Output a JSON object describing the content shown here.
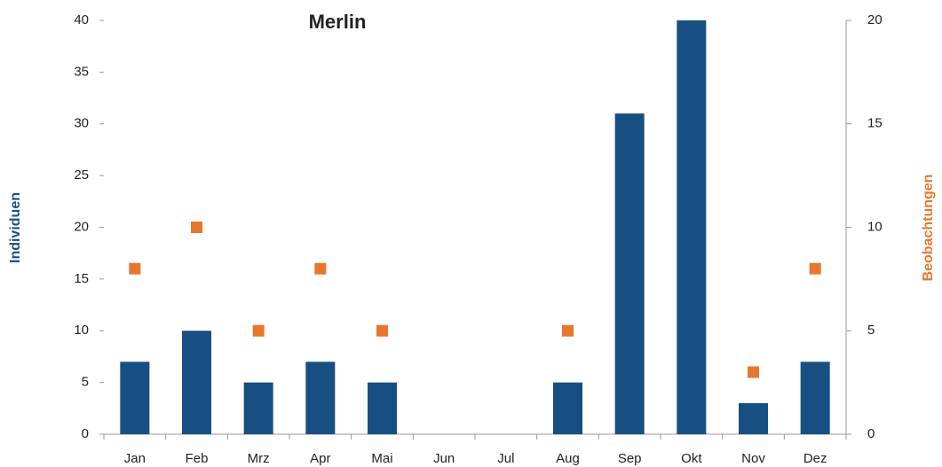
{
  "chart_data": {
    "type": "bar",
    "title": "Merlin",
    "categories": [
      "Jan",
      "Feb",
      "Mrz",
      "Apr",
      "Mai",
      "Jun",
      "Jul",
      "Aug",
      "Sep",
      "Okt",
      "Nov",
      "Dez"
    ],
    "y_label": "Individuen",
    "y2_label": "Beobachtungen",
    "series": [
      {
        "name": "Individuen",
        "color": "#174f82",
        "values": [
          7,
          10,
          5,
          7,
          5,
          0,
          0,
          5,
          31,
          40,
          3,
          7
        ]
      },
      {
        "name": "Beobachtungen",
        "color": "#e8772e",
        "axis": "y2",
        "values": [
          8,
          10,
          5,
          8,
          5,
          null,
          null,
          5,
          null,
          null,
          3,
          8
        ]
      }
    ],
    "ylim": [
      0,
      40
    ],
    "yticks": [
      0,
      5,
      10,
      15,
      20,
      25,
      30,
      35,
      40
    ],
    "y2lim": [
      0,
      20
    ],
    "y2ticks": [
      0,
      5,
      10,
      15,
      20
    ]
  }
}
